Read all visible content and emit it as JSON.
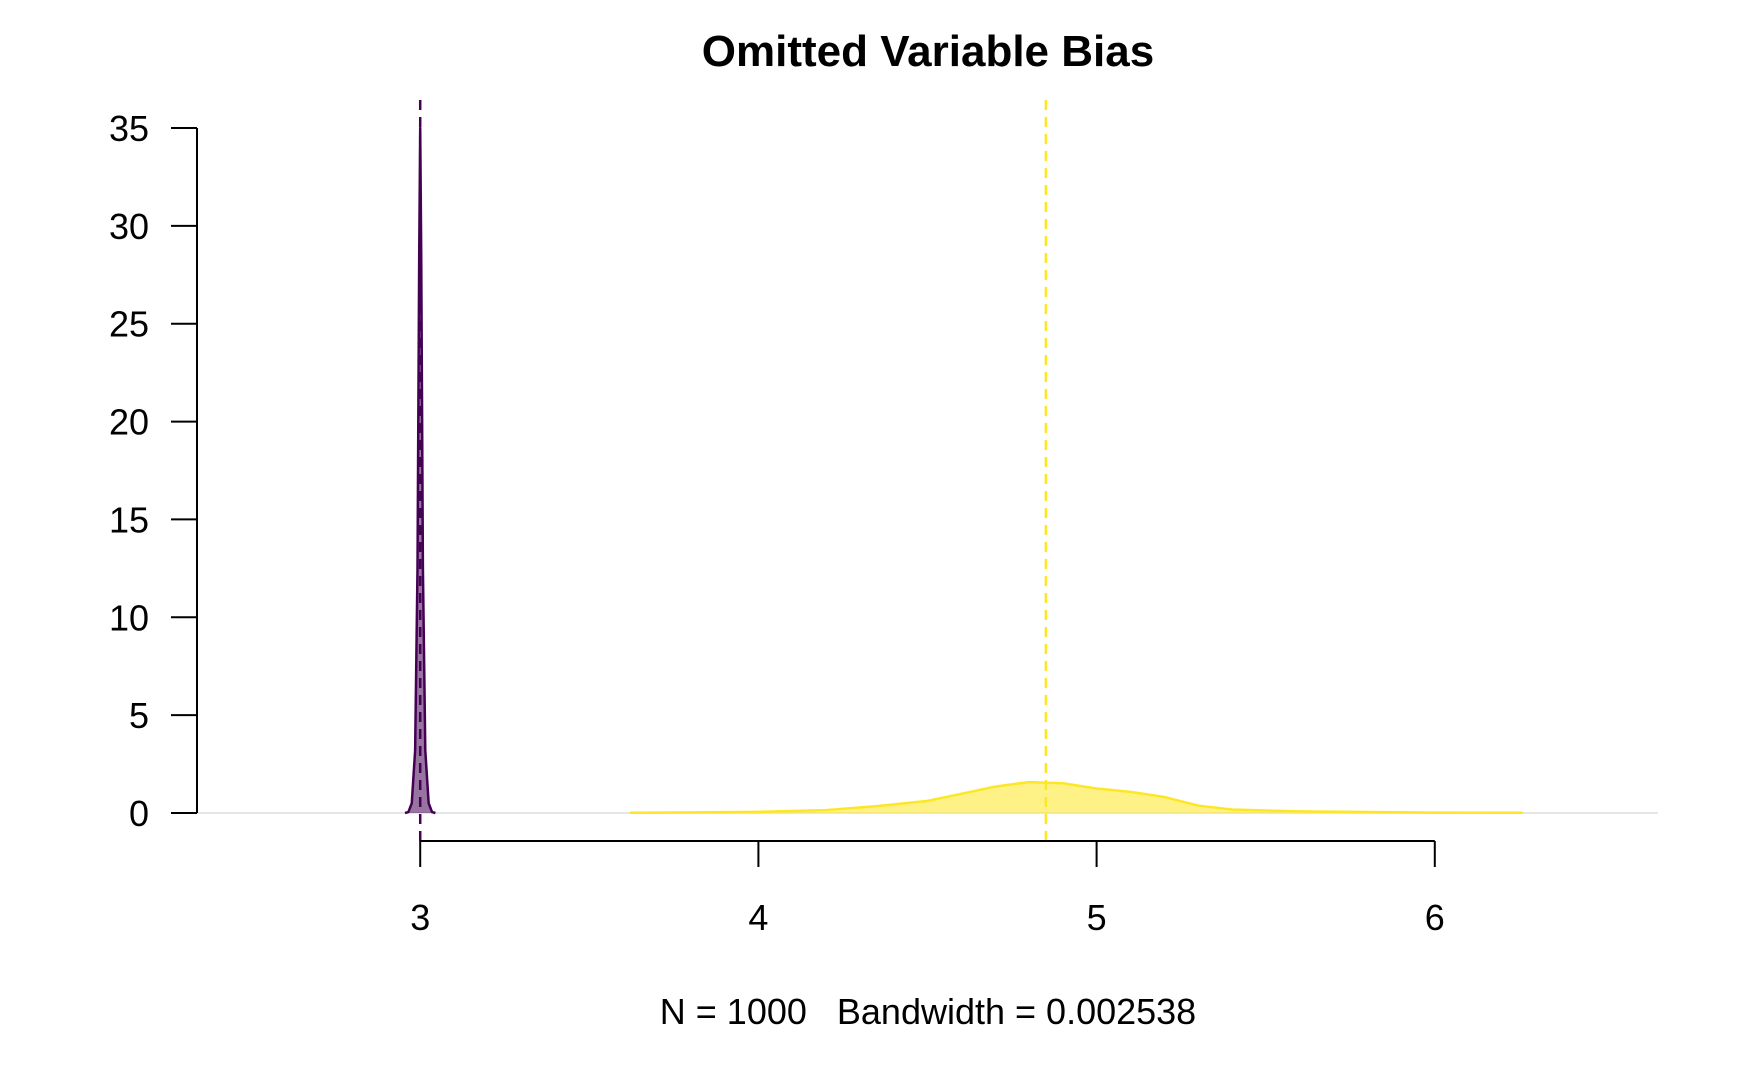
{
  "chart_data": {
    "type": "area",
    "title": "Omitted Variable Bias",
    "xlabel": "N = 1000   Bandwidth = 0.002538",
    "ylabel": "",
    "xlim": [
      2.34,
      6.66
    ],
    "ylim": [
      0,
      35
    ],
    "x_ticks": [
      3,
      4,
      5,
      6
    ],
    "y_ticks": [
      0,
      5,
      10,
      15,
      20,
      25,
      30,
      35
    ],
    "grid": false,
    "legend": "none",
    "series": [
      {
        "color": "#440154",
        "fill": "#440154",
        "fill_opacity": 0.55,
        "mean_line": 3.0,
        "x": [
          2.955,
          2.965,
          2.975,
          2.985,
          2.992,
          2.997,
          3.0,
          3.003,
          3.008,
          3.015,
          3.025,
          3.035,
          3.045
        ],
        "y": [
          0,
          0.05,
          0.5,
          3.2,
          12.5,
          28.5,
          35.0,
          28.5,
          12.5,
          3.2,
          0.5,
          0.05,
          0
        ]
      },
      {
        "color": "#FDE725",
        "fill": "#FDE725",
        "fill_opacity": 0.55,
        "mean_line": 4.85,
        "x": [
          3.62,
          3.8,
          4.0,
          4.2,
          4.35,
          4.5,
          4.6,
          4.7,
          4.8,
          4.9,
          5.0,
          5.1,
          5.2,
          5.3,
          5.4,
          5.6,
          5.8,
          6.0,
          6.26
        ],
        "y": [
          0.01,
          0.03,
          0.06,
          0.15,
          0.35,
          0.62,
          0.98,
          1.35,
          1.58,
          1.52,
          1.25,
          1.08,
          0.82,
          0.38,
          0.18,
          0.08,
          0.05,
          0.02,
          0.01
        ]
      }
    ]
  }
}
